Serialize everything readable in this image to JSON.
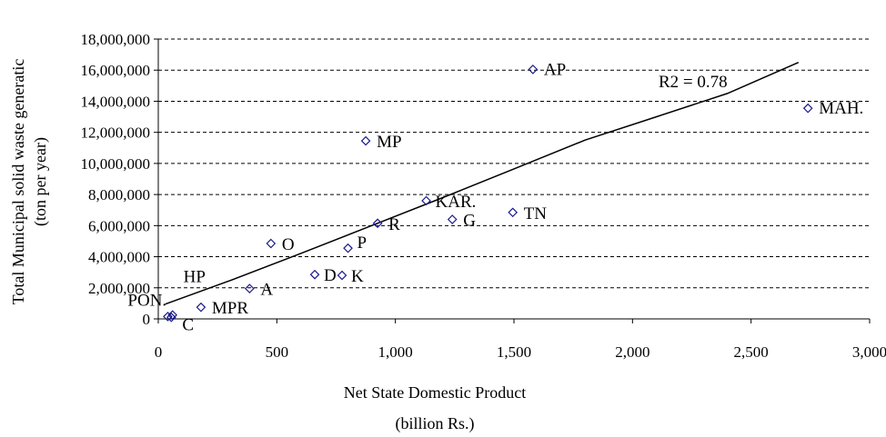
{
  "chart_data": {
    "type": "scatter",
    "ylabel_line1": "Total Municipal solid waste generatic",
    "ylabel_line2": "(ton per year)",
    "xlabel_line1": "Net State Domestic Product",
    "xlabel_line2": "(billion Rs.)",
    "xlim": [
      0,
      3000
    ],
    "ylim": [
      0,
      18000000
    ],
    "x_ticks": [
      0,
      500,
      1000,
      1500,
      2000,
      2500,
      3000
    ],
    "x_tick_labels": [
      "0",
      "500",
      "1,000",
      "1,500",
      "2,000",
      "2,500",
      "3,000"
    ],
    "y_ticks": [
      0,
      2000000,
      4000000,
      6000000,
      8000000,
      10000000,
      12000000,
      14000000,
      16000000,
      18000000
    ],
    "y_tick_labels": [
      "0",
      "2,000,000",
      "4,000,000",
      "6,000,000",
      "8,000,000",
      "10,000,000",
      "12,000,000",
      "14,000,000",
      "16,000,000",
      "18,000,000"
    ],
    "grid": "horizontal dashed",
    "marker": "diamond",
    "marker_color": "#1a1a8c",
    "points": [
      {
        "label": "AP",
        "x": 1580,
        "y": 16050000
      },
      {
        "label": "MAH.",
        "x": 2740,
        "y": 13550000
      },
      {
        "label": "MP",
        "x": 875,
        "y": 11450000
      },
      {
        "label": "KAR.",
        "x": 1130,
        "y": 7600000
      },
      {
        "label": "TN",
        "x": 1495,
        "y": 6850000
      },
      {
        "label": "G",
        "x": 1240,
        "y": 6400000
      },
      {
        "label": "R",
        "x": 925,
        "y": 6150000
      },
      {
        "label": "O",
        "x": 475,
        "y": 4850000
      },
      {
        "label": "P",
        "x": 800,
        "y": 4550000
      },
      {
        "label": "D",
        "x": 660,
        "y": 2850000
      },
      {
        "label": "K",
        "x": 775,
        "y": 2800000
      },
      {
        "label": "A",
        "x": 385,
        "y": 1950000
      },
      {
        "label": "MPR",
        "x": 180,
        "y": 750000
      },
      {
        "label": "HP",
        "x": 60,
        "y": 250000
      },
      {
        "label": "PON.",
        "x": 40,
        "y": 150000
      },
      {
        "label": "C",
        "x": 55,
        "y": 100000
      }
    ],
    "trendline": {
      "type": "polynomial",
      "x": [
        30,
        300,
        600,
        900,
        1200,
        1500,
        1800,
        2100,
        2400,
        2700
      ],
      "y": [
        950000,
        2450000,
        4200000,
        6000000,
        7800000,
        9650000,
        11500000,
        13000000,
        14500000,
        16500000
      ]
    },
    "annotation": "R2 = 0.78",
    "annotation_pos": {
      "x": 2110,
      "y": 14900000
    }
  }
}
